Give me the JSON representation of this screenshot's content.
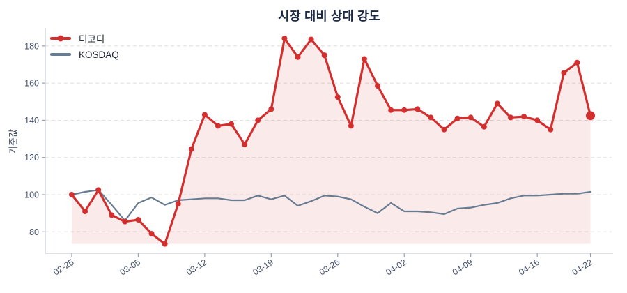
{
  "window": {
    "title": "시장 대비 상대 강도"
  },
  "accent_colors": {
    "series_red": "#d32f2f",
    "series_gray": "#677b91",
    "fill_pink": "rgba(211,47,47,0.10)",
    "grid": "#dedede",
    "spine": "#c6cbd4",
    "tick_text": "#44506b",
    "title_text": "#1b2944"
  },
  "chart_data": {
    "type": "line",
    "title": "시장 대비 상대 강도",
    "xlabel": "",
    "ylabel": "기준값",
    "ylim": [
      68,
      190
    ],
    "y_ticks": [
      80,
      100,
      120,
      140,
      160,
      180
    ],
    "grid": "horizontal-dashed",
    "legend_position": "top-left",
    "x_tick_positions": [
      0,
      5,
      10,
      15,
      20,
      25,
      30,
      35,
      39
    ],
    "x_tick_labels": [
      "02-25",
      "03-05",
      "03-12",
      "03-19",
      "03-26",
      "04-02",
      "04-09",
      "04-16",
      "04-22"
    ],
    "x_count": 40,
    "series": [
      {
        "name": "더코디",
        "color": "#d32f2f",
        "marker": true,
        "marker_radius": 4,
        "emphasize_last": true,
        "last_point_radius": 6.5,
        "line_width": 3.2,
        "fill_to_min": true,
        "values": [
          100,
          91,
          102.5,
          89,
          85.5,
          86.5,
          79,
          73.5,
          95,
          124.5,
          143,
          137,
          138,
          127,
          140,
          146,
          184,
          174,
          183.5,
          175,
          152.5,
          137,
          173,
          158.5,
          145.5,
          145.5,
          146,
          141.5,
          135,
          141,
          141.5,
          136.5,
          149,
          141.5,
          142,
          140,
          135,
          165.5,
          171,
          142.5
        ]
      },
      {
        "name": "KOSDAQ",
        "color": "#677b91",
        "marker": false,
        "line_width": 2.2,
        "fill_to_min": false,
        "values": [
          100,
          101.5,
          102.5,
          94.5,
          86,
          95.5,
          98.5,
          94.5,
          97,
          97.5,
          98,
          98,
          97,
          97,
          99.5,
          97.5,
          99.5,
          94,
          96.5,
          99.5,
          99,
          97.5,
          93.5,
          90,
          95.5,
          91,
          91,
          90.5,
          89.5,
          92.5,
          93,
          94.5,
          95.5,
          98,
          99.5,
          99.5,
          100,
          100.5,
          100.5,
          101.5
        ]
      }
    ]
  }
}
